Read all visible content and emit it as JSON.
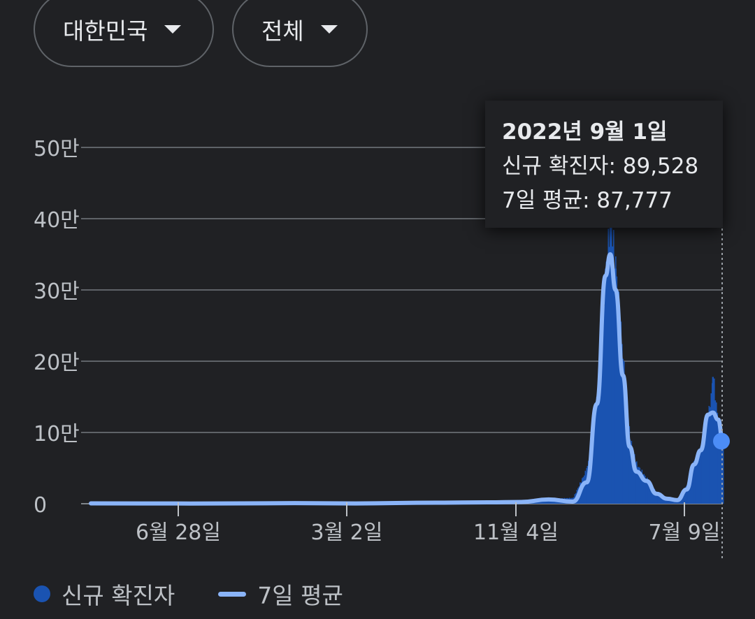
{
  "filters": {
    "region": "대한민국",
    "period": "전체"
  },
  "tooltip": {
    "date": "2022년 9월 1일",
    "new_cases_label": "신규 확진자: 89,528",
    "avg_label": "7일 평균: 87,777"
  },
  "legend": {
    "new_cases": "신규 확진자",
    "avg": "7일 평균"
  },
  "colors": {
    "bar": "#1a53b1",
    "line": "#8ab4f8",
    "marker": "#4c8df6",
    "grid": "#5f6368",
    "text": "#bdc1c6"
  },
  "chart_data": {
    "type": "area",
    "yticks": [
      "0",
      "10만",
      "20만",
      "30만",
      "40만",
      "50만"
    ],
    "xticks": [
      "6월 28일",
      "3월 2일",
      "11월 4일",
      "7월 9일"
    ],
    "ylim": [
      0,
      500000
    ],
    "grid": true,
    "legend_position": "bottom-left",
    "series": [
      {
        "name": "신규 확진자",
        "type": "bar",
        "x": [
          "2020-02-01",
          "2020-06-28",
          "2020-12-01",
          "2021-03-02",
          "2021-07-01",
          "2021-09-15",
          "2021-11-04",
          "2021-12-15",
          "2022-01-20",
          "2022-02-10",
          "2022-02-25",
          "2022-03-10",
          "2022-03-17",
          "2022-03-25",
          "2022-04-05",
          "2022-04-15",
          "2022-04-25",
          "2022-05-10",
          "2022-05-25",
          "2022-06-10",
          "2022-06-25",
          "2022-07-09",
          "2022-07-20",
          "2022-07-30",
          "2022-08-10",
          "2022-08-17",
          "2022-08-25",
          "2022-09-01"
        ],
        "values": [
          500,
          300,
          800,
          400,
          1500,
          2000,
          2500,
          7000,
          8000,
          50000,
          150000,
          330000,
          400000,
          330000,
          200000,
          90000,
          55000,
          35000,
          15000,
          7000,
          6000,
          25000,
          60000,
          80000,
          125000,
          178000,
          110000,
          89528
        ]
      },
      {
        "name": "7일 평균",
        "type": "line",
        "x": [
          "2020-02-01",
          "2020-06-28",
          "2020-12-01",
          "2021-03-02",
          "2021-07-01",
          "2021-09-15",
          "2021-11-04",
          "2021-12-15",
          "2022-01-20",
          "2022-02-10",
          "2022-02-25",
          "2022-03-10",
          "2022-03-17",
          "2022-03-25",
          "2022-04-05",
          "2022-04-15",
          "2022-04-25",
          "2022-05-10",
          "2022-05-25",
          "2022-06-10",
          "2022-06-25",
          "2022-07-09",
          "2022-07-20",
          "2022-07-30",
          "2022-08-10",
          "2022-08-17",
          "2022-08-25",
          "2022-09-01"
        ],
        "values": [
          500,
          300,
          800,
          400,
          1500,
          2000,
          2500,
          6000,
          3000,
          30000,
          140000,
          320000,
          350000,
          300000,
          180000,
          80000,
          45000,
          32000,
          14000,
          7000,
          5000,
          20000,
          55000,
          75000,
          125000,
          128000,
          118000,
          87777
        ]
      }
    ]
  }
}
